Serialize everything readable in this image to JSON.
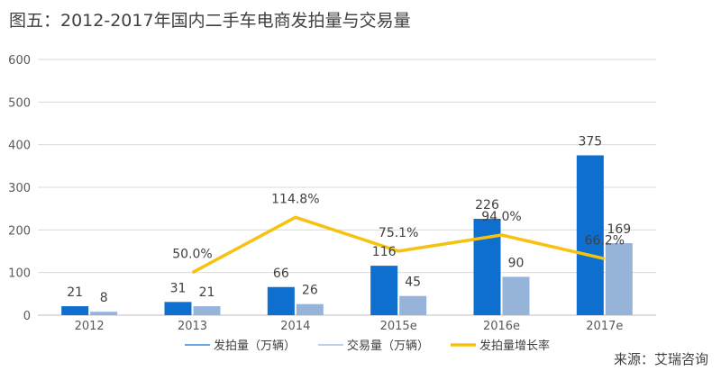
{
  "title": "图五：2012-2017年国内二手车电商发拍量与交易量",
  "source": "来源：艾瑞咨询",
  "chart_data": {
    "type": "bar",
    "categories": [
      "2012",
      "2013",
      "2014",
      "2015e",
      "2016e",
      "2017e"
    ],
    "ylim": [
      0,
      600
    ],
    "yticks": [
      0,
      100,
      200,
      300,
      400,
      500,
      600
    ],
    "grid": true,
    "legend_position": "bottom",
    "series": [
      {
        "name": "发拍量（万辆）",
        "type": "bar",
        "color": "#0E6FCF",
        "values": [
          21,
          31,
          66,
          116,
          226,
          375
        ],
        "labels": [
          "21",
          "31",
          "66",
          "116",
          "226",
          "375"
        ]
      },
      {
        "name": "交易量（万辆）",
        "type": "bar",
        "color": "#96B3D9",
        "values": [
          8,
          21,
          26,
          45,
          90,
          169
        ],
        "labels": [
          "8",
          "21",
          "26",
          "45",
          "90",
          "169"
        ]
      },
      {
        "name": "发拍量增长率",
        "type": "line",
        "color": "#F7C20F",
        "values": [
          null,
          50.0,
          114.8,
          75.1,
          94.0,
          66.2
        ],
        "labels": [
          "",
          "50.0%",
          "114.8%",
          "75.1%",
          "94.0%",
          "66.2%"
        ]
      }
    ]
  }
}
